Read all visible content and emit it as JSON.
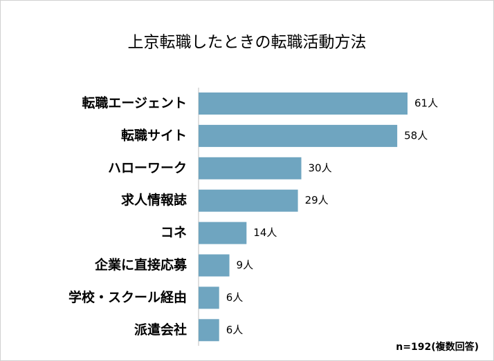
{
  "chart_data": {
    "type": "bar",
    "orientation": "horizontal",
    "title": "上京転職したときの転職活動方法",
    "categories": [
      "転職エージェント",
      "転職サイト",
      "ハローワーク",
      "求人情報誌",
      "コネ",
      "企業に直接応募",
      "学校・スクール経由",
      "派遣会社"
    ],
    "values": [
      61,
      58,
      30,
      29,
      14,
      9,
      6,
      6
    ],
    "value_labels": [
      "61人",
      "58人",
      "30人",
      "29人",
      "14人",
      "9人",
      "6人",
      "6人"
    ],
    "color": "#6fa5c0",
    "note": "n=192(複数回答)"
  }
}
